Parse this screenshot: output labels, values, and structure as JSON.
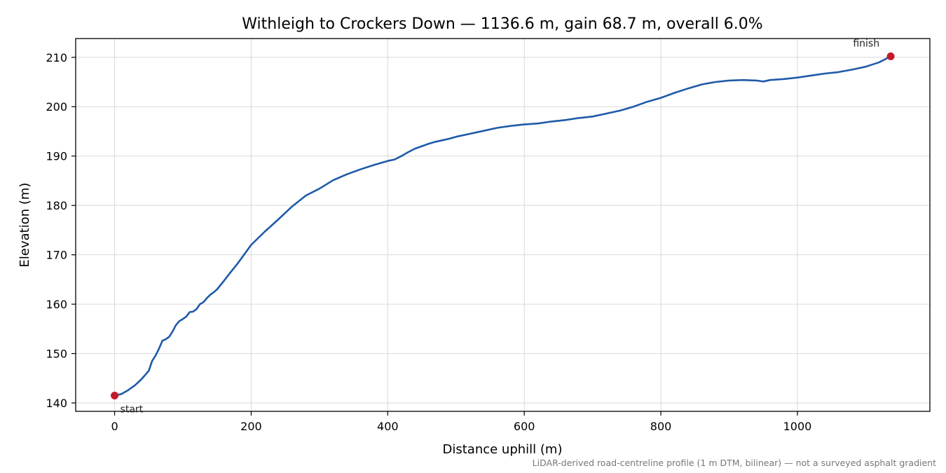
{
  "chart_data": {
    "type": "line",
    "title": "Withleigh to Crockers Down — 1136.6 m, gain 68.7 m, overall 6.0%",
    "xlabel": "Distance uphill (m)",
    "ylabel": "Elevation (m)",
    "footnote": "LiDAR-derived road-centreline profile (1 m DTM, bilinear) — not a surveyed asphalt gradient",
    "xlim": [
      -57,
      1194
    ],
    "ylim": [
      138.3,
      213.8
    ],
    "xticks": [
      0,
      200,
      400,
      600,
      800,
      1000
    ],
    "yticks": [
      140,
      150,
      160,
      170,
      180,
      190,
      200,
      210
    ],
    "grid": true,
    "line_color": "#1f5aa8",
    "marker_color": "#c21a2c",
    "series": [
      {
        "x": [
          0,
          10,
          20,
          30,
          40,
          50,
          55,
          60,
          65,
          70,
          75,
          80,
          85,
          90,
          95,
          100,
          105,
          110,
          115,
          120,
          125,
          130,
          135,
          140,
          145,
          150,
          160,
          170,
          180,
          200,
          220,
          240,
          260,
          280,
          300,
          320,
          340,
          360,
          380,
          400,
          410,
          420,
          430,
          440,
          450,
          460,
          470,
          480,
          490,
          500,
          520,
          540,
          560,
          580,
          600,
          620,
          640,
          660,
          680,
          700,
          720,
          740,
          760,
          780,
          800,
          820,
          840,
          860,
          880,
          900,
          920,
          940,
          950,
          960,
          980,
          1000,
          1020,
          1040,
          1060,
          1080,
          1100,
          1120,
          1136.6
        ],
        "y": [
          141.5,
          141.8,
          142.6,
          143.6,
          144.9,
          146.5,
          148.5,
          149.6,
          151.0,
          152.6,
          152.9,
          153.4,
          154.5,
          155.8,
          156.6,
          157.0,
          157.5,
          158.4,
          158.5,
          159.0,
          160.0,
          160.4,
          161.2,
          161.9,
          162.4,
          163.0,
          164.7,
          166.5,
          168.2,
          172.0,
          174.7,
          177.2,
          179.8,
          182.0,
          183.4,
          185.1,
          186.3,
          187.3,
          188.2,
          189.0,
          189.3,
          190.0,
          190.8,
          191.5,
          192.0,
          192.5,
          192.9,
          193.2,
          193.5,
          193.9,
          194.5,
          195.1,
          195.7,
          196.1,
          196.4,
          196.6,
          197.0,
          197.3,
          197.7,
          198.0,
          198.6,
          199.2,
          200.0,
          201.0,
          201.8,
          202.8,
          203.7,
          204.5,
          205.0,
          205.3,
          205.4,
          205.3,
          205.1,
          205.4,
          205.6,
          205.9,
          206.3,
          206.7,
          207.0,
          207.5,
          208.1,
          209.0,
          210.2
        ]
      }
    ],
    "annotations": [
      {
        "text": "start",
        "x": 0,
        "y": 141.5
      },
      {
        "text": "finish",
        "x": 1136.6,
        "y": 210.2
      }
    ]
  }
}
